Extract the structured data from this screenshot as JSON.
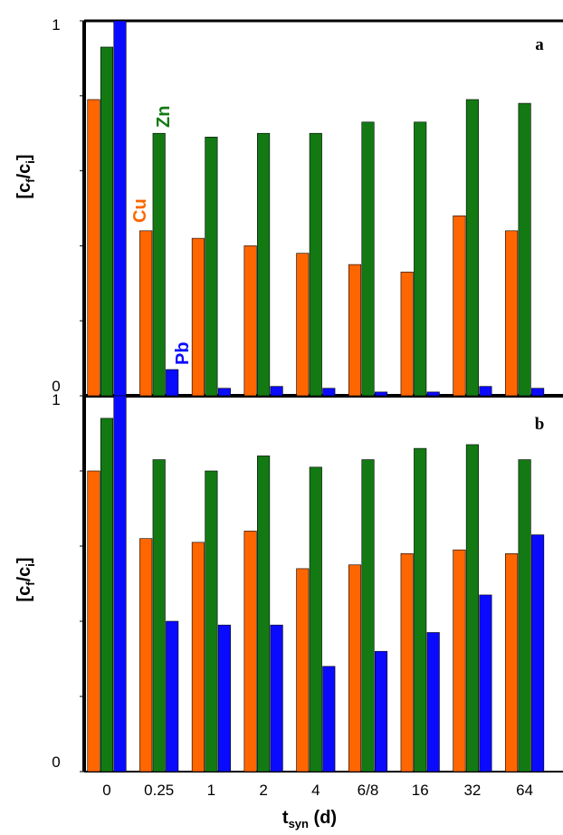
{
  "colors": {
    "Cu": "#ff6600",
    "Zn": "#137a13",
    "Pb": "#0a0aff",
    "frame": "#000000"
  },
  "chart_data": [
    {
      "type": "bar",
      "panel": "a",
      "categories": [
        "0",
        "0.25",
        "1",
        "2",
        "4",
        "6/8",
        "16",
        "32",
        "64"
      ],
      "series": [
        {
          "name": "Cu",
          "values": [
            0.79,
            0.44,
            0.42,
            0.4,
            0.38,
            0.35,
            0.33,
            0.48,
            0.44
          ]
        },
        {
          "name": "Zn",
          "values": [
            0.93,
            0.7,
            0.69,
            0.7,
            0.7,
            0.73,
            0.73,
            0.79,
            0.78
          ]
        },
        {
          "name": "Pb",
          "values": [
            1.0,
            0.07,
            0.02,
            0.025,
            0.02,
            0.01,
            0.01,
            0.025,
            0.02
          ]
        }
      ],
      "ylabel": "[cf/ci]",
      "yticks": [
        "0",
        "1"
      ],
      "ylim": [
        0,
        1
      ],
      "annotations": [
        "a"
      ],
      "grid": false
    },
    {
      "type": "bar",
      "panel": "b",
      "categories": [
        "0",
        "0.25",
        "1",
        "2",
        "4",
        "6/8",
        "16",
        "32",
        "64"
      ],
      "series": [
        {
          "name": "Cu",
          "values": [
            0.8,
            0.62,
            0.61,
            0.64,
            0.54,
            0.55,
            0.58,
            0.59,
            0.58
          ]
        },
        {
          "name": "Zn",
          "values": [
            0.94,
            0.83,
            0.8,
            0.84,
            0.81,
            0.83,
            0.86,
            0.87,
            0.83
          ]
        },
        {
          "name": "Pb",
          "values": [
            1.0,
            0.4,
            0.39,
            0.39,
            0.28,
            0.32,
            0.37,
            0.47,
            0.63
          ]
        }
      ],
      "ylabel": "[cf/ci]",
      "yticks": [
        "0",
        "1"
      ],
      "ylim": [
        0,
        1
      ],
      "xlabel": "tsyn (d)",
      "annotations": [
        "b"
      ],
      "grid": false
    }
  ],
  "series_labels": {
    "cu": "Cu",
    "zn": "Zn",
    "pb": "Pb"
  },
  "ylabel_parts": {
    "open": "[c",
    "sub1": "f",
    "mid": "/c",
    "sub2": "i",
    "close": "]"
  },
  "xlabel_parts": {
    "main": "t",
    "sub": "syn",
    "rest": " (d)"
  }
}
